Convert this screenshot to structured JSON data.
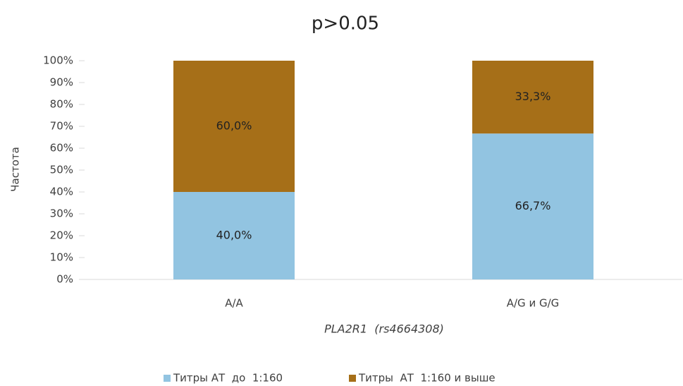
{
  "chart_data": {
    "type": "stacked_bar",
    "title": "p>0.05",
    "y_label": "Частота",
    "x_label": "PLA2R1  (rs4664308)",
    "categories": [
      "A/A",
      "A/G и G/G"
    ],
    "series": [
      {
        "name": "Титры АТ  до  1:160",
        "color": "#92c4e1",
        "values": [
          40.0,
          66.7
        ],
        "value_labels": [
          "40,0%",
          "66,7%"
        ]
      },
      {
        "name": "Титры  АТ  1:160 и выше",
        "color": "#a66f18",
        "values": [
          60.0,
          33.3
        ],
        "value_labels": [
          "60,0%",
          "33,3%"
        ]
      }
    ],
    "ylim": [
      0,
      100
    ],
    "yticks": [
      {
        "value": 0,
        "label": "0%"
      },
      {
        "value": 10,
        "label": "10%"
      },
      {
        "value": 20,
        "label": "20%"
      },
      {
        "value": 30,
        "label": "30%"
      },
      {
        "value": 40,
        "label": "40%"
      },
      {
        "value": 50,
        "label": "50%"
      },
      {
        "value": 60,
        "label": "60%"
      },
      {
        "value": 70,
        "label": "70%"
      },
      {
        "value": 80,
        "label": "80%"
      },
      {
        "value": 90,
        "label": "90%"
      },
      {
        "value": 100,
        "label": "100%"
      }
    ],
    "grid": false,
    "legend": "bottom"
  }
}
